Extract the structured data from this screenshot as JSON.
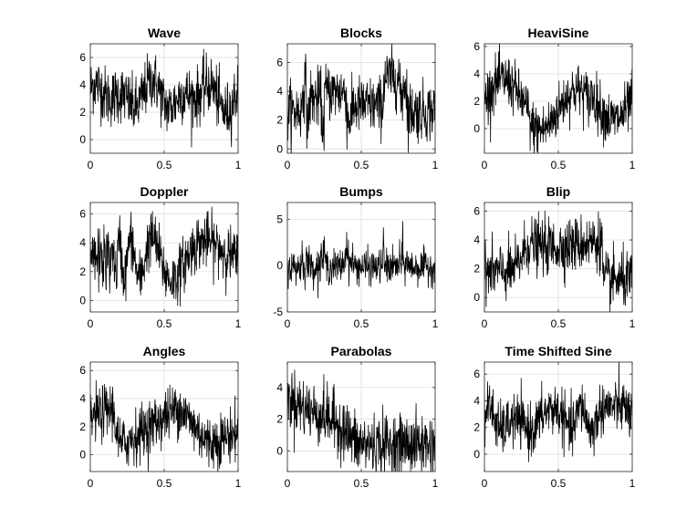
{
  "chart_data": [
    {
      "type": "line",
      "title": "Wave",
      "xlabel": "",
      "ylabel": "",
      "xlim": [
        0,
        1
      ],
      "ylim": [
        -1,
        7
      ],
      "xticks": [
        0,
        0.5,
        1
      ],
      "xticklabels": [
        "0",
        "0.5",
        "1"
      ],
      "yticks": [
        0,
        2,
        4,
        6
      ],
      "yticklabels": [
        "0",
        "2",
        "4",
        "6"
      ],
      "grid": true,
      "series": [
        {
          "signal": "wave",
          "noise": 1.05,
          "offset": 0,
          "color": "#000000"
        }
      ]
    },
    {
      "type": "line",
      "title": "Blocks",
      "xlabel": "",
      "ylabel": "",
      "xlim": [
        0,
        1
      ],
      "ylim": [
        -0.3,
        7.3
      ],
      "xticks": [
        0,
        0.5,
        1
      ],
      "xticklabels": [
        "0",
        "0.5",
        "1"
      ],
      "yticks": [
        0,
        2,
        4,
        6
      ],
      "yticklabels": [
        "0",
        "2",
        "4",
        "6"
      ],
      "grid": true,
      "series": [
        {
          "signal": "blocks",
          "noise": 1.0,
          "offset": 0,
          "color": "#000000"
        }
      ]
    },
    {
      "type": "line",
      "title": "HeaviSine",
      "xlabel": "",
      "ylabel": "",
      "xlim": [
        0,
        1
      ],
      "ylim": [
        -1.8,
        6.2
      ],
      "xticks": [
        0,
        0.5,
        1
      ],
      "xticklabels": [
        "0",
        "0.5",
        "1"
      ],
      "yticks": [
        0,
        2,
        4,
        6
      ],
      "yticklabels": [
        "0",
        "2",
        "4",
        "6"
      ],
      "grid": true,
      "series": [
        {
          "signal": "heavisine",
          "noise": 0.95,
          "offset": 0,
          "color": "#000000"
        }
      ]
    },
    {
      "type": "line",
      "title": "Doppler",
      "xlabel": "",
      "ylabel": "",
      "xlim": [
        0,
        1
      ],
      "ylim": [
        -0.8,
        6.8
      ],
      "xticks": [
        0,
        0.5,
        1
      ],
      "xticklabels": [
        "0",
        "0.5",
        "1"
      ],
      "yticks": [
        0,
        2,
        4,
        6
      ],
      "yticklabels": [
        "0",
        "2",
        "4",
        "6"
      ],
      "grid": true,
      "series": [
        {
          "signal": "doppler",
          "noise": 0.95,
          "offset": 0,
          "color": "#000000"
        }
      ]
    },
    {
      "type": "line",
      "title": "Bumps",
      "xlabel": "",
      "ylabel": "",
      "xlim": [
        0,
        1
      ],
      "ylim": [
        -5,
        6.8
      ],
      "xticks": [
        0,
        0.5,
        1
      ],
      "xticklabels": [
        "0",
        "0.5",
        "1"
      ],
      "yticks": [
        -5,
        0,
        5
      ],
      "yticklabels": [
        "-5",
        "0",
        "5"
      ],
      "grid": true,
      "series": [
        {
          "signal": "bumps",
          "noise": 0.9,
          "offset": 0,
          "color": "#000000"
        }
      ]
    },
    {
      "type": "line",
      "title": "Blip",
      "xlabel": "",
      "ylabel": "",
      "xlim": [
        0,
        1
      ],
      "ylim": [
        -1,
        6.6
      ],
      "xticks": [
        0,
        0.5,
        1
      ],
      "xticklabels": [
        "0",
        "0.5",
        "1"
      ],
      "yticks": [
        0,
        2,
        4,
        6
      ],
      "yticklabels": [
        "0",
        "2",
        "4",
        "6"
      ],
      "grid": true,
      "series": [
        {
          "signal": "blip",
          "noise": 0.95,
          "offset": 0,
          "color": "#000000"
        }
      ]
    },
    {
      "type": "line",
      "title": "Angles",
      "xlabel": "",
      "ylabel": "",
      "xlim": [
        0,
        1
      ],
      "ylim": [
        -1.2,
        6.6
      ],
      "xticks": [
        0,
        0.5,
        1
      ],
      "xticklabels": [
        "0",
        "0.5",
        "1"
      ],
      "yticks": [
        0,
        2,
        4,
        6
      ],
      "yticklabels": [
        "0",
        "2",
        "4",
        "6"
      ],
      "grid": true,
      "series": [
        {
          "signal": "angles",
          "noise": 0.95,
          "offset": 0,
          "color": "#000000"
        }
      ]
    },
    {
      "type": "line",
      "title": "Parabolas",
      "xlabel": "",
      "ylabel": "",
      "xlim": [
        0,
        1
      ],
      "ylim": [
        -1.3,
        5.6
      ],
      "xticks": [
        0,
        0.5,
        1
      ],
      "xticklabels": [
        "0",
        "0.5",
        "1"
      ],
      "yticks": [
        0,
        2,
        4
      ],
      "yticklabels": [
        "0",
        "2",
        "4"
      ],
      "grid": true,
      "series": [
        {
          "signal": "parabolas",
          "noise": 0.95,
          "offset": 0,
          "color": "#000000"
        }
      ]
    },
    {
      "type": "line",
      "title": "Time Shifted Sine",
      "xlabel": "",
      "ylabel": "",
      "xlim": [
        0,
        1
      ],
      "ylim": [
        -1.3,
        6.9
      ],
      "xticks": [
        0,
        0.5,
        1
      ],
      "xticklabels": [
        "0",
        "0.5",
        "1"
      ],
      "yticks": [
        0,
        2,
        4,
        6
      ],
      "yticklabels": [
        "0",
        "2",
        "4",
        "6"
      ],
      "grid": true,
      "series": [
        {
          "signal": "timeshiftsine",
          "noise": 0.95,
          "offset": 0,
          "color": "#000000"
        }
      ]
    }
  ],
  "samples_per_trace": 512
}
